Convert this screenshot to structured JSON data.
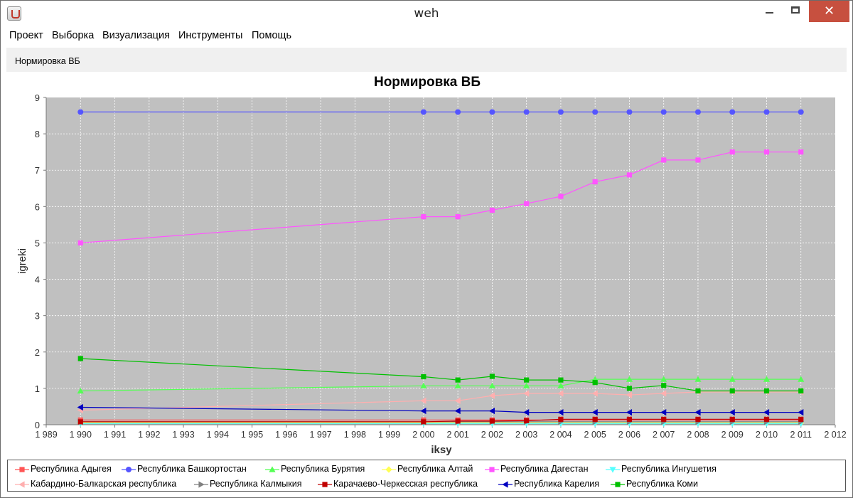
{
  "window": {
    "title": "weh"
  },
  "window_controls": {
    "minimize": "",
    "maximize": "",
    "close": "✕"
  },
  "menu": [
    "Проект",
    "Выборка",
    "Визуализация",
    "Инструменты",
    "Помощь"
  ],
  "toolbar": {
    "button_label": "Нормировка ВБ"
  },
  "chart_data": {
    "type": "line",
    "title": "Нормировка ВБ",
    "xlabel": "iksy",
    "ylabel": "igreki",
    "xlim": [
      1989,
      2012
    ],
    "ylim": [
      0,
      9
    ],
    "x_ticks": [
      "1 989",
      "1 990",
      "1 991",
      "1 992",
      "1 993",
      "1 994",
      "1 995",
      "1 996",
      "1 997",
      "1 998",
      "1 999",
      "2 000",
      "2 001",
      "2 002",
      "2 003",
      "2 004",
      "2 005",
      "2 006",
      "2 007",
      "2 008",
      "2 009",
      "2 010",
      "2 011",
      "2 012"
    ],
    "y_ticks": [
      "0",
      "1",
      "2",
      "3",
      "4",
      "5",
      "6",
      "7",
      "8",
      "9"
    ],
    "grid": true,
    "background": "#c0c0c0",
    "x": [
      1990,
      2000,
      2001,
      2002,
      2003,
      2004,
      2005,
      2006,
      2007,
      2008,
      2009,
      2010,
      2011
    ],
    "series": [
      {
        "name": "Республика Адыгея",
        "color": "#ff5555",
        "marker": "square",
        "values": [
          0.13,
          0.13,
          0.13,
          0.13,
          0.13,
          0.13,
          0.13,
          0.13,
          0.13,
          0.13,
          0.13,
          0.13,
          0.13
        ]
      },
      {
        "name": "Республика Башкортостан",
        "color": "#5555ff",
        "marker": "circle",
        "values": [
          8.6,
          8.6,
          8.6,
          8.6,
          8.6,
          8.6,
          8.6,
          8.6,
          8.6,
          8.6,
          8.6,
          8.6,
          8.6
        ]
      },
      {
        "name": "Республика Бурятия",
        "color": "#55ff55",
        "marker": "triangle-up",
        "values": [
          0.93,
          1.07,
          1.07,
          1.07,
          1.07,
          1.07,
          1.25,
          1.25,
          1.25,
          1.25,
          1.25,
          1.25,
          1.25
        ]
      },
      {
        "name": "Республика Алтай",
        "color": "#ffff55",
        "marker": "diamond",
        "values": [
          0.05,
          0.05,
          0.05,
          0.05,
          0.05,
          0.05,
          0.05,
          0.05,
          0.05,
          0.05,
          0.05,
          0.05,
          0.05
        ]
      },
      {
        "name": "Республика Дагестан",
        "color": "#ff55ff",
        "marker": "square",
        "values": [
          5.0,
          5.72,
          5.72,
          5.9,
          6.08,
          6.28,
          6.68,
          6.87,
          7.28,
          7.28,
          7.5,
          7.5,
          7.5
        ]
      },
      {
        "name": "Республика Ингушетия",
        "color": "#55ffff",
        "marker": "triangle-down",
        "values": [
          0.03,
          0.03,
          0.03,
          0.03,
          0.03,
          0.03,
          0.03,
          0.03,
          0.03,
          0.03,
          0.03,
          0.03,
          0.03
        ]
      },
      {
        "name": "Кабардино-Балкарская республика",
        "color": "#ffafaf",
        "marker": "triangle-left",
        "values": [
          0.4,
          0.66,
          0.66,
          0.8,
          0.86,
          0.86,
          0.86,
          0.82,
          0.86,
          0.9,
          0.9,
          0.9,
          0.9
        ]
      },
      {
        "name": "Республика Калмыкия",
        "color": "#808080",
        "marker": "triangle-right",
        "values": [
          0.08,
          0.08,
          0.08,
          0.08,
          0.08,
          0.08,
          0.08,
          0.08,
          0.08,
          0.08,
          0.08,
          0.08,
          0.08
        ]
      },
      {
        "name": "Карачаево-Черкесская республика",
        "color": "#c00000",
        "marker": "square",
        "values": [
          0.08,
          0.08,
          0.1,
          0.1,
          0.11,
          0.15,
          0.15,
          0.15,
          0.15,
          0.15,
          0.15,
          0.15,
          0.15
        ]
      },
      {
        "name": "Республика Карелия",
        "color": "#0000c0",
        "marker": "triangle-left",
        "values": [
          0.48,
          0.38,
          0.38,
          0.38,
          0.34,
          0.34,
          0.34,
          0.34,
          0.34,
          0.34,
          0.34,
          0.34,
          0.34
        ]
      },
      {
        "name": "Республика Коми",
        "color": "#00c000",
        "marker": "square",
        "values": [
          1.82,
          1.32,
          1.23,
          1.33,
          1.23,
          1.23,
          1.16,
          1.0,
          1.08,
          0.93,
          0.93,
          0.93,
          0.93
        ]
      }
    ]
  }
}
